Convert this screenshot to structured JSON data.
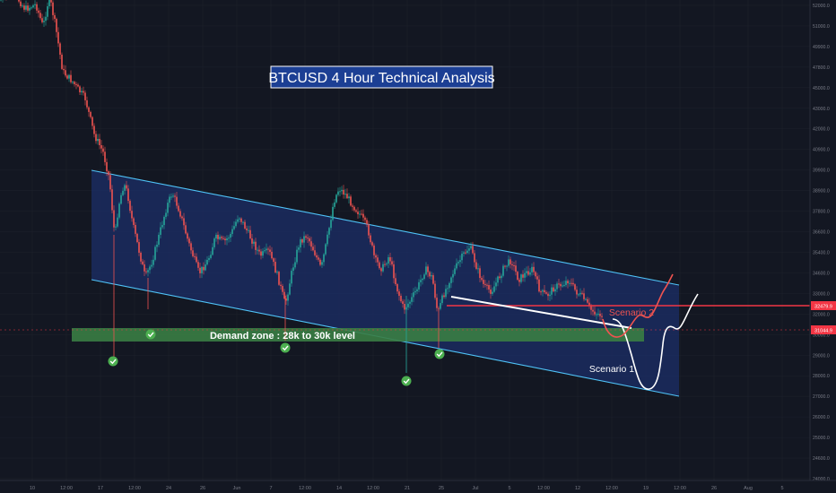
{
  "chart_data": {
    "type": "candlestick",
    "title": "BTCUSD 4 Hour Technical Analysis",
    "y_axis_side": "right",
    "y_ticks": [
      52000,
      51000,
      49900,
      47800,
      45000,
      43000,
      42000,
      40900,
      39900,
      38900,
      37800,
      36600,
      35400,
      34600,
      33000,
      32000,
      30000,
      29000,
      28000,
      27000,
      26000,
      25000,
      24600,
      24000
    ],
    "y_tick_labels": [
      "52000.0",
      "51000.0",
      "49900.0",
      "47800.0",
      "45000.0",
      "43000.0",
      "42000.0",
      "40900.0",
      "39900.0",
      "38900.0",
      "37800.0",
      "36600.0",
      "35400.0",
      "34600.0",
      "33000.0",
      "32000.0",
      "30000.0",
      "29000.0",
      "28000.0",
      "27000.0",
      "26000.0",
      "25000.0",
      "24600.0",
      "24000.0"
    ],
    "x_tick_labels": [
      "10",
      "12:00",
      "17",
      "12:00",
      "24",
      "26",
      "Jun",
      "7",
      "12:00",
      "14",
      "12:00",
      "21",
      "25",
      "Jul",
      "5",
      "12:00",
      "12",
      "12:00",
      "19",
      "12:00",
      "26",
      "Aug",
      "5"
    ],
    "price_markers": [
      {
        "label": "32479.9",
        "color": "#f23645"
      },
      {
        "label": "31044.9",
        "color": "#f23645"
      }
    ],
    "annotations": {
      "demand_zone": "Demand zone : 28k to 30k level",
      "scenario_1": "Scenario 1",
      "scenario_2": "Scenario 2"
    },
    "colors": {
      "up": "#26a69a",
      "down": "#ef5350",
      "channel_line": "#4fc3f7",
      "channel_fill": "#1c2f6b",
      "demand_zone": "#3a7d44",
      "check_badge": "#4caf50",
      "title_bg": "#1c3f94",
      "resistance": "#f23645"
    }
  }
}
